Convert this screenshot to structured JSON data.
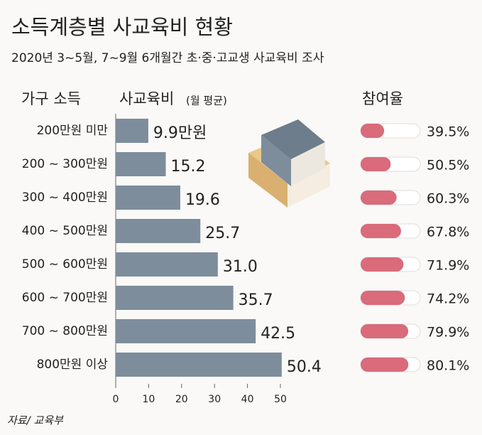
{
  "chart_data": [
    {
      "type": "bar",
      "orientation": "horizontal",
      "title": "소득계층별 사교육비 현황",
      "subtitle": "2020년 3~5월, 7~9월 6개월간 초·중·고교생 사교육비 조사",
      "category_header": "가구 소득",
      "value_header": "사교육비",
      "value_header_note": "(월 평균)",
      "categories": [
        "200만원 미만",
        "200 ~ 300만원",
        "300 ~ 400만원",
        "400 ~ 500만원",
        "500 ~ 600만원",
        "600 ~ 700만원",
        "700 ~ 800만원",
        "800만원 이상"
      ],
      "values": [
        9.9,
        15.2,
        19.6,
        25.7,
        31.0,
        35.7,
        42.5,
        50.4
      ],
      "value_labels": [
        "9.9만원",
        "15.2",
        "19.6",
        "25.7",
        "31.0",
        "35.7",
        "42.5",
        "50.4"
      ],
      "color": "#7d8d9c",
      "xlim": [
        0,
        50
      ],
      "xticks": [
        0,
        10,
        20,
        30,
        40,
        50
      ]
    },
    {
      "type": "progress",
      "title": "참여율",
      "values": [
        39.5,
        50.5,
        60.3,
        67.8,
        71.9,
        74.2,
        79.9,
        80.1
      ],
      "value_labels": [
        "39.5%",
        "50.5%",
        "60.3%",
        "67.8%",
        "71.9%",
        "74.2%",
        "79.9%",
        "80.1%"
      ],
      "color": "#d96b7b",
      "xlim": [
        0,
        100
      ]
    }
  ],
  "source": "자료/ 교육부"
}
